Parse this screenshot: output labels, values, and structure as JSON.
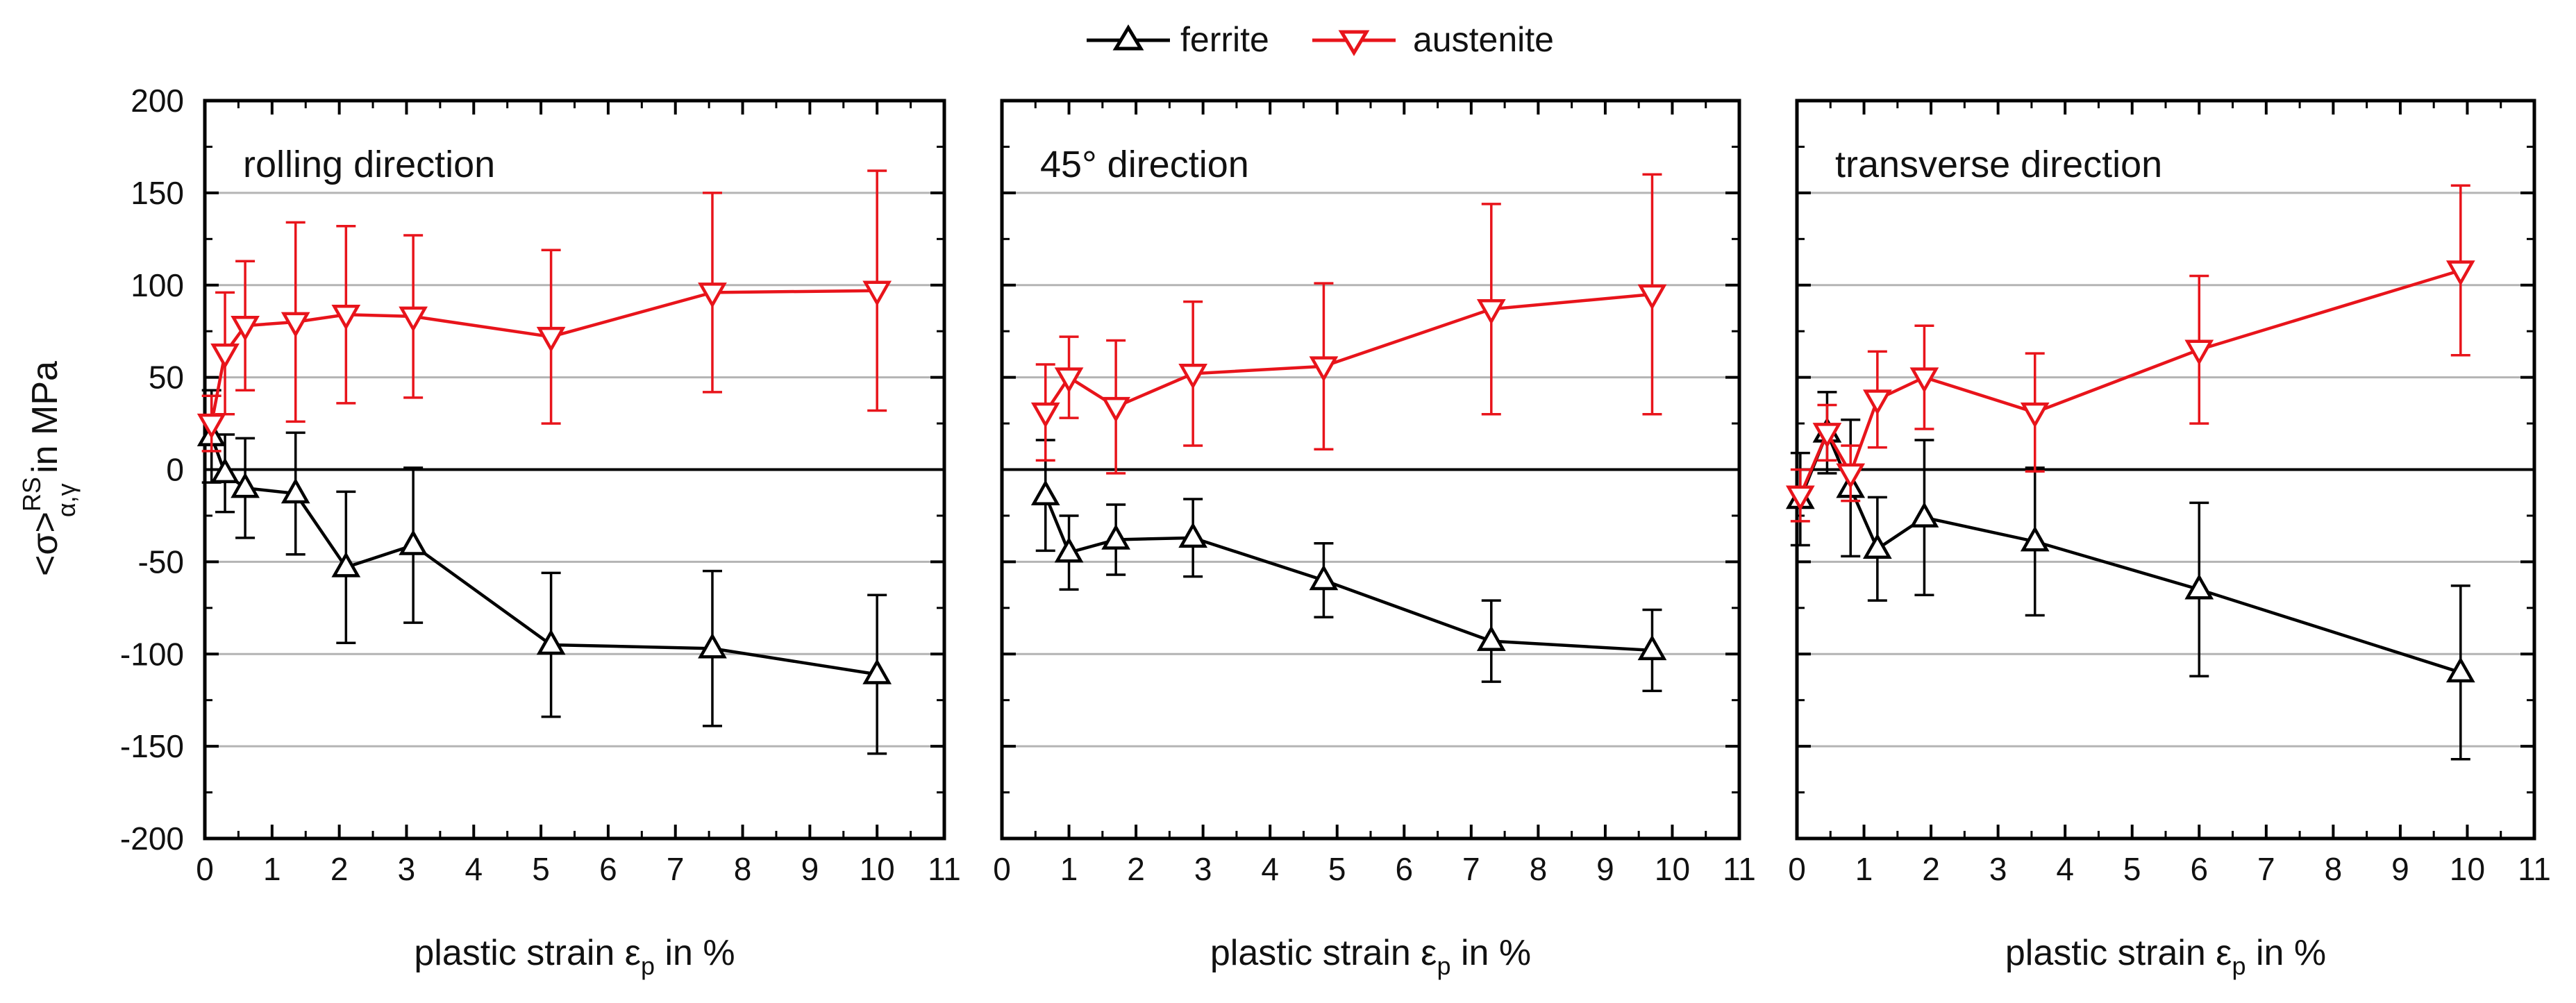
{
  "legend": {
    "ferrite": "ferrite",
    "austenite": "austenite"
  },
  "ylabel": {
    "prefix": "<σ>",
    "sup": "RS",
    "sub": "α,γ",
    "suffix": " in MPa"
  },
  "xlabel": {
    "prefix": "plastic strain ε",
    "sub": "p",
    "suffix": " in %"
  },
  "colors": {
    "ferrite": "#000000",
    "austenite": "#e8141b",
    "grid": "#b4b4b4",
    "axis": "#000000"
  },
  "chart_data": [
    {
      "type": "line",
      "title": "rolling direction",
      "xlabel": "plastic strain εp in %",
      "ylabel": "<σ>RS α,γ in MPa",
      "xlim": [
        0,
        11
      ],
      "ylim": [
        -200,
        200
      ],
      "xticks": [
        0,
        1,
        2,
        3,
        4,
        5,
        6,
        7,
        8,
        9,
        10,
        11
      ],
      "yticks": [
        -200,
        -150,
        -100,
        -50,
        0,
        50,
        100,
        150,
        200
      ],
      "grid": "horizontal",
      "series": [
        {
          "name": "ferrite",
          "marker": "triangle-up",
          "x": [
            0.1,
            0.3,
            0.6,
            1.35,
            2.1,
            3.1,
            5.15,
            7.55,
            10.0
          ],
          "y": [
            18,
            -2,
            -10,
            -13,
            -53,
            -41,
            -95,
            -97,
            -111
          ],
          "yerr": [
            25,
            21,
            27,
            33,
            41,
            42,
            39,
            42,
            43
          ]
        },
        {
          "name": "austenite",
          "marker": "triangle-down",
          "x": [
            0.1,
            0.3,
            0.6,
            1.35,
            2.1,
            3.1,
            5.15,
            7.55,
            10.0
          ],
          "y": [
            25,
            63,
            78,
            80,
            84,
            83,
            72,
            96,
            97
          ],
          "yerr": [
            15,
            33,
            35,
            54,
            48,
            44,
            47,
            54,
            65
          ]
        }
      ]
    },
    {
      "type": "line",
      "title": "45° direction",
      "xlabel": "plastic strain εp in %",
      "ylabel": "<σ>RS α,γ in MPa",
      "xlim": [
        0,
        11
      ],
      "ylim": [
        -200,
        200
      ],
      "xticks": [
        0,
        1,
        2,
        3,
        4,
        5,
        6,
        7,
        8,
        9,
        10,
        11
      ],
      "yticks": [
        -200,
        -150,
        -100,
        -50,
        0,
        50,
        100,
        150,
        200
      ],
      "grid": "horizontal",
      "series": [
        {
          "name": "ferrite",
          "marker": "triangle-up",
          "x": [
            0.65,
            1.0,
            1.7,
            2.85,
            4.8,
            7.3,
            9.7
          ],
          "y": [
            -14,
            -45,
            -38,
            -37,
            -60,
            -93,
            -98
          ],
          "yerr": [
            30,
            20,
            19,
            21,
            20,
            22,
            22
          ]
        },
        {
          "name": "austenite",
          "marker": "triangle-down",
          "x": [
            0.65,
            1.0,
            1.7,
            2.85,
            4.8,
            7.3,
            9.7
          ],
          "y": [
            31,
            50,
            34,
            52,
            56,
            87,
            95
          ],
          "yerr": [
            26,
            22,
            36,
            39,
            45,
            57,
            65
          ]
        }
      ]
    },
    {
      "type": "line",
      "title": "transverse direction",
      "xlabel": "plastic strain εp in %",
      "ylabel": "<σ>RS α,γ in MPa",
      "xlim": [
        0,
        11
      ],
      "ylim": [
        -200,
        200
      ],
      "xticks": [
        0,
        1,
        2,
        3,
        4,
        5,
        6,
        7,
        8,
        9,
        10,
        11
      ],
      "yticks": [
        -200,
        -150,
        -100,
        -50,
        0,
        50,
        100,
        150,
        200
      ],
      "grid": "horizontal",
      "series": [
        {
          "name": "ferrite",
          "marker": "triangle-up",
          "x": [
            0.05,
            0.45,
            0.8,
            1.2,
            1.9,
            3.55,
            6.0,
            9.9
          ],
          "y": [
            -16,
            20,
            -10,
            -43,
            -26,
            -39,
            -65,
            -110
          ],
          "yerr": [
            25,
            22,
            37,
            28,
            42,
            40,
            47,
            47
          ]
        },
        {
          "name": "austenite",
          "marker": "triangle-down",
          "x": [
            0.05,
            0.45,
            0.8,
            1.2,
            1.9,
            3.55,
            6.0,
            9.9
          ],
          "y": [
            -14,
            20,
            -2,
            38,
            50,
            31,
            65,
            108
          ],
          "yerr": [
            14,
            15,
            15,
            26,
            28,
            32,
            40,
            46
          ]
        }
      ]
    }
  ]
}
